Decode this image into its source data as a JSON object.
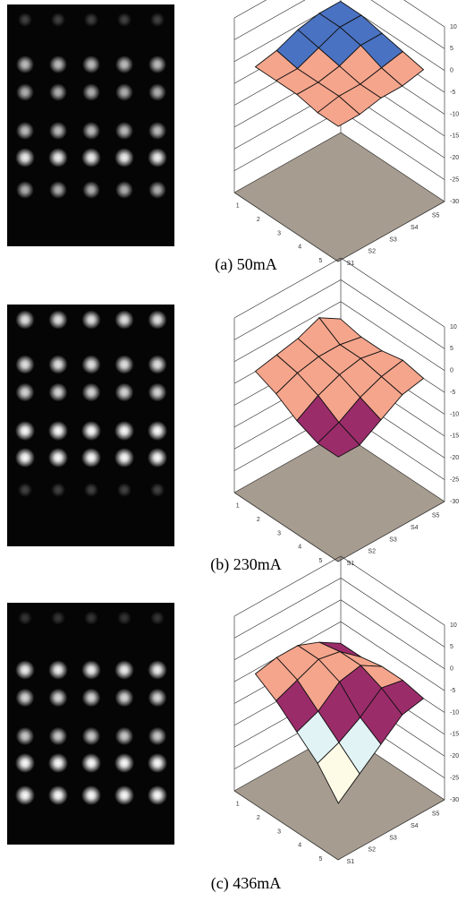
{
  "figures": [
    {
      "caption": "(a) 50mA",
      "z_ticks": [
        "10",
        "5",
        "0",
        "-5",
        "-10",
        "-15",
        "-20",
        "-25",
        "-30"
      ],
      "row_ticks": [
        "1",
        "2",
        "3",
        "4",
        "5"
      ],
      "col_ticks": [
        "S1",
        "S2",
        "S3",
        "S4",
        "S5"
      ],
      "surface_z": [
        [
          -1,
          0,
          2,
          3,
          3
        ],
        [
          -1,
          -1,
          1,
          3,
          3
        ],
        [
          -1,
          -1,
          0,
          2,
          2
        ],
        [
          -2,
          -1,
          -1,
          0,
          1
        ],
        [
          -2,
          -2,
          -1,
          -1,
          0
        ]
      ]
    },
    {
      "caption": "(b) 230mA",
      "z_ticks": [
        "10",
        "5",
        "0",
        "-5",
        "-10",
        "-15",
        "-20",
        "-25",
        "-30"
      ],
      "row_ticks": [
        "1",
        "2",
        "3",
        "4",
        "5"
      ],
      "col_ticks": [
        "S1",
        "S2",
        "S3",
        "S4",
        "S5"
      ],
      "surface_z": [
        [
          -2,
          -1,
          0,
          2,
          -1
        ],
        [
          -4,
          -2,
          -1,
          -1,
          -2
        ],
        [
          -7,
          -4,
          -2,
          -1,
          -2
        ],
        [
          -9,
          -7,
          -4,
          -2,
          -1
        ],
        [
          -9,
          -9,
          -6,
          -3,
          -2
        ]
      ]
    },
    {
      "caption": "(c) 436mA",
      "z_ticks": [
        "10",
        "5",
        "0",
        "-5",
        "-10",
        "-15",
        "-20",
        "-25",
        "-30"
      ],
      "row_ticks": [
        "1",
        "2",
        "3",
        "4",
        "5"
      ],
      "col_ticks": [
        "S1",
        "S2",
        "S3",
        "S4",
        "S5"
      ],
      "surface_z": [
        [
          -3,
          -2,
          -2,
          -4,
          -7
        ],
        [
          -6,
          -4,
          -2,
          -3,
          -7
        ],
        [
          -10,
          -8,
          -4,
          -3,
          -6
        ],
        [
          -14,
          -12,
          -9,
          -5,
          -6
        ],
        [
          -20,
          -16,
          -12,
          -8,
          -7
        ]
      ]
    }
  ]
}
